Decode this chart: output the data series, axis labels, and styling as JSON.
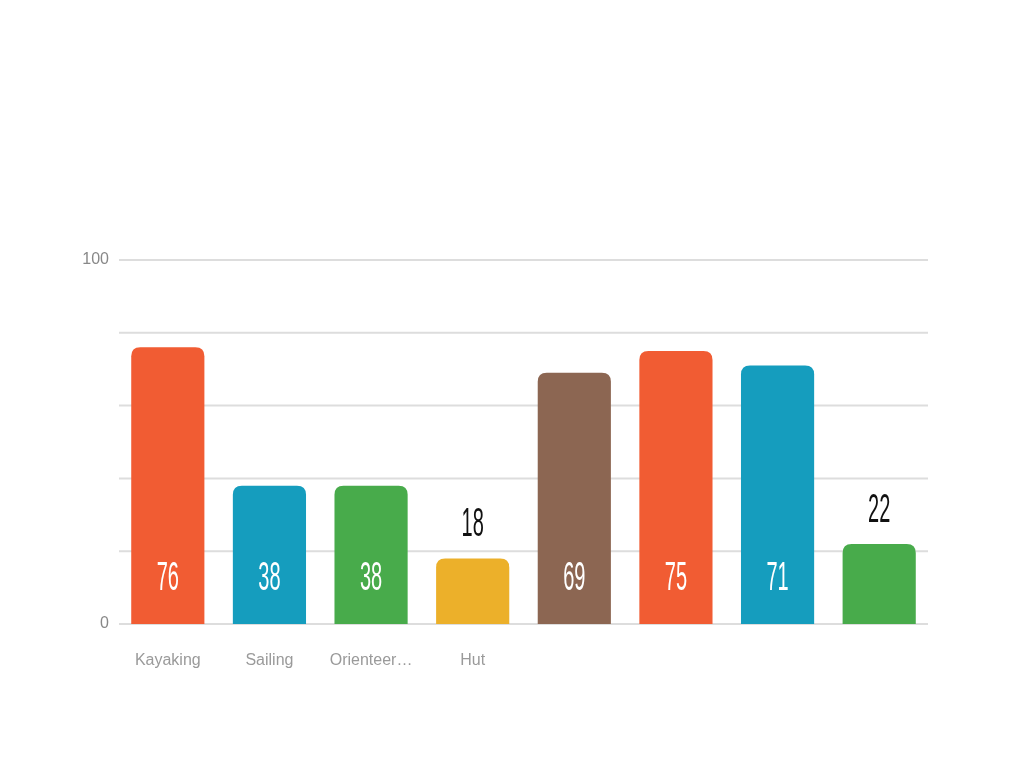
{
  "chart_data": {
    "type": "bar",
    "categories": [
      "Kayaking",
      "Sailing",
      "Orienteer…",
      "Hut",
      null,
      null,
      null,
      null
    ],
    "values": [
      76,
      38,
      38,
      18,
      69,
      75,
      71,
      22
    ],
    "colors": [
      "#f15c33",
      "#159dbe",
      "#48ab4b",
      "#ecb02a",
      "#8c6652",
      "#f15c33",
      "#159dbe",
      "#48ab4b"
    ],
    "ylim": [
      0,
      100
    ],
    "yticks": [
      0,
      {
        "value": 20,
        "label": null
      },
      {
        "value": 40,
        "label": null
      },
      {
        "value": 60,
        "label": null
      },
      {
        "value": 80,
        "label": null
      },
      100
    ],
    "grid": "y",
    "data_labels": true
  }
}
